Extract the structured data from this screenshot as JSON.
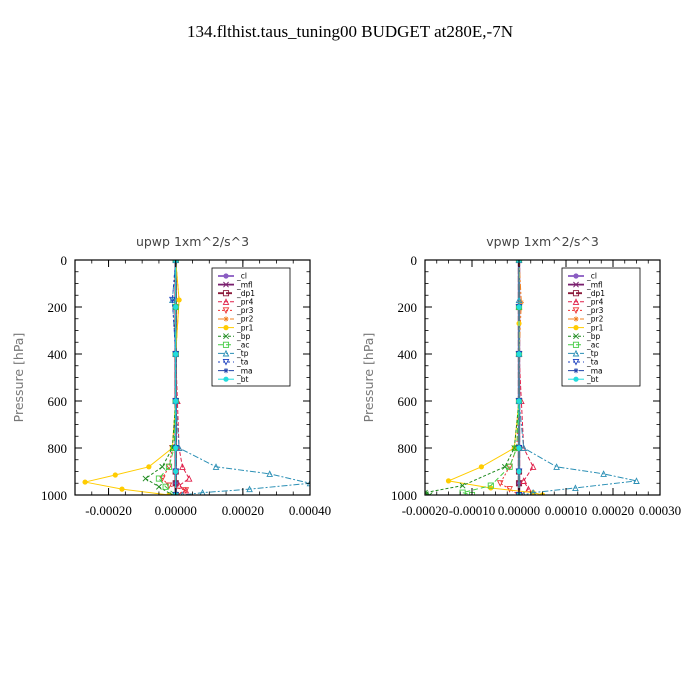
{
  "page": {
    "title": "134.flthist.taus_tuning00  BUDGET at280E,-7N"
  },
  "chart_data": [
    {
      "type": "line",
      "title": "upwp   1xm^2/s^3",
      "ylabel": "Pressure [hPa]",
      "xlabel": "",
      "xlim": [
        -0.0003,
        0.0004
      ],
      "ylim": [
        1000,
        0
      ],
      "xticks": [
        -0.0002,
        0.0,
        0.0002,
        0.0004
      ],
      "xtick_labels": [
        "-0.00020",
        "0.00000",
        "0.00020",
        "0.00040"
      ],
      "yticks": [
        0,
        200,
        400,
        600,
        800,
        1000
      ],
      "ytick_labels": [
        "0",
        "200",
        "400",
        "600",
        "800",
        "1000"
      ],
      "grid": false,
      "legend_position": "top-right",
      "series": [
        {
          "name": "_cl",
          "color": "#8a5cc2",
          "x": [
            0,
            0,
            0,
            0,
            0,
            0,
            0,
            0
          ],
          "y": [
            0,
            200,
            400,
            600,
            800,
            900,
            950,
            1000
          ]
        },
        {
          "name": "_mfl",
          "color": "#7a1f6e",
          "x": [
            0,
            0,
            0,
            0,
            0,
            0,
            0,
            0
          ],
          "y": [
            0,
            200,
            400,
            600,
            800,
            900,
            950,
            1000
          ]
        },
        {
          "name": "_dp1",
          "color": "#8b1a3a",
          "x": [
            0,
            0,
            0,
            0,
            0,
            0,
            0,
            0
          ],
          "y": [
            0,
            200,
            400,
            600,
            800,
            900,
            950,
            1000
          ]
        },
        {
          "name": "_pr4",
          "color": "#e0204a",
          "x": [
            0,
            0,
            0,
            5e-06,
            1e-05,
            2e-05,
            4e-05,
            1e-05,
            3e-05,
            5e-06
          ],
          "y": [
            0,
            200,
            400,
            600,
            800,
            880,
            930,
            960,
            980,
            1000
          ]
        },
        {
          "name": "_pr3",
          "color": "#ee3333",
          "x": [
            0,
            0,
            0,
            0,
            -1e-05,
            -2e-05,
            -4e-05,
            -2e-05,
            3e-05,
            0
          ],
          "y": [
            0,
            200,
            400,
            600,
            800,
            880,
            930,
            960,
            980,
            1000
          ]
        },
        {
          "name": "_pr2",
          "color": "#f08020",
          "x": [
            0,
            1e-05,
            0,
            0,
            0,
            0,
            0
          ],
          "y": [
            0,
            170,
            400,
            600,
            800,
            900,
            1000
          ]
        },
        {
          "name": "_pr1",
          "color": "#ffcc00",
          "x": [
            0,
            1e-05,
            0,
            0,
            -1e-05,
            -8e-05,
            -0.00018,
            -0.00027,
            -0.00016,
            -2e-05
          ],
          "y": [
            0,
            170,
            400,
            600,
            800,
            880,
            915,
            945,
            975,
            1000
          ]
        },
        {
          "name": "_bp",
          "color": "#1e8a1e",
          "x": [
            0,
            0,
            0,
            0,
            -1e-05,
            -4e-05,
            -9e-05,
            -5e-05,
            -1e-05
          ],
          "y": [
            0,
            200,
            400,
            600,
            800,
            880,
            930,
            965,
            1000
          ]
        },
        {
          "name": "_ac",
          "color": "#44cc44",
          "x": [
            0,
            0,
            0,
            0,
            -5e-06,
            -2e-05,
            -5e-05,
            -3e-05,
            0
          ],
          "y": [
            0,
            200,
            400,
            600,
            800,
            880,
            930,
            965,
            1000
          ]
        },
        {
          "name": "_tp",
          "color": "#2a8fb5",
          "x": [
            0,
            -1e-05,
            0,
            0,
            1e-05,
            0.00012,
            0.00028,
            0.0004,
            0.00022,
            8e-05,
            2e-05
          ],
          "y": [
            0,
            170,
            400,
            600,
            800,
            880,
            910,
            950,
            975,
            990,
            1000
          ]
        },
        {
          "name": "_ta",
          "color": "#1a3fbf",
          "x": [
            0,
            -1e-05,
            0,
            0,
            0,
            0,
            0
          ],
          "y": [
            0,
            170,
            400,
            600,
            800,
            900,
            1000
          ]
        },
        {
          "name": "_ma",
          "color": "#2244aa",
          "x": [
            0,
            0,
            0,
            0,
            0,
            0,
            0
          ],
          "y": [
            0,
            200,
            400,
            600,
            800,
            900,
            1000
          ]
        },
        {
          "name": "_bt",
          "color": "#22dddd",
          "x": [
            0,
            0,
            0,
            0,
            0,
            0,
            0
          ],
          "y": [
            0,
            200,
            400,
            600,
            800,
            900,
            1000
          ]
        }
      ]
    },
    {
      "type": "line",
      "title": "vpwp   1xm^2/s^3",
      "ylabel": "Pressure [hPa]",
      "xlabel": "",
      "xlim": [
        -0.0002,
        0.0003
      ],
      "ylim": [
        1000,
        0
      ],
      "xticks": [
        -0.0002,
        -0.0001,
        0.0,
        0.0001,
        0.0002,
        0.0003
      ],
      "xtick_labels": [
        "-0.00020",
        "-0.00010",
        "0.00000",
        "0.00010",
        "0.00020",
        "0.00030"
      ],
      "yticks": [
        0,
        200,
        400,
        600,
        800,
        1000
      ],
      "ytick_labels": [
        "0",
        "200",
        "400",
        "600",
        "800",
        "1000"
      ],
      "grid": false,
      "legend_position": "top-right",
      "series": [
        {
          "name": "_cl",
          "color": "#8a5cc2",
          "x": [
            0,
            0,
            0,
            0,
            0,
            0,
            0,
            0
          ],
          "y": [
            0,
            200,
            400,
            600,
            800,
            900,
            950,
            1000
          ]
        },
        {
          "name": "_mfl",
          "color": "#7a1f6e",
          "x": [
            0,
            0,
            0,
            0,
            0,
            0,
            0,
            0
          ],
          "y": [
            0,
            200,
            400,
            600,
            800,
            900,
            950,
            1000
          ]
        },
        {
          "name": "_dp1",
          "color": "#8b1a3a",
          "x": [
            0,
            0,
            0,
            0,
            0,
            0,
            0,
            0
          ],
          "y": [
            0,
            200,
            400,
            600,
            800,
            900,
            950,
            1000
          ]
        },
        {
          "name": "_pr4",
          "color": "#e0204a",
          "x": [
            0,
            0,
            0,
            5e-06,
            1e-05,
            3e-05,
            1e-05,
            2e-05,
            5e-06
          ],
          "y": [
            0,
            200,
            400,
            600,
            800,
            880,
            940,
            975,
            1000
          ]
        },
        {
          "name": "_pr3",
          "color": "#ee3333",
          "x": [
            0,
            0,
            0,
            0,
            -5e-06,
            -2e-05,
            -4e-05,
            -2e-05,
            0
          ],
          "y": [
            0,
            200,
            400,
            600,
            800,
            880,
            950,
            975,
            1000
          ]
        },
        {
          "name": "_pr2",
          "color": "#f08020",
          "x": [
            0,
            5e-06,
            0,
            0,
            0,
            0,
            0
          ],
          "y": [
            0,
            180,
            400,
            600,
            800,
            900,
            1000
          ]
        },
        {
          "name": "_pr1",
          "color": "#ffcc00",
          "x": [
            0,
            0,
            0,
            0,
            -1e-05,
            -8e-05,
            -0.00015,
            -6e-05,
            3e-05,
            5e-05
          ],
          "y": [
            0,
            270,
            400,
            600,
            800,
            880,
            940,
            970,
            990,
            1000
          ]
        },
        {
          "name": "_bp",
          "color": "#1e8a1e",
          "x": [
            0,
            0,
            0,
            0,
            -1e-05,
            -3e-05,
            -0.00012,
            -0.0002,
            -0.00019
          ],
          "y": [
            0,
            200,
            400,
            600,
            800,
            880,
            960,
            990,
            1000
          ]
        },
        {
          "name": "_ac",
          "color": "#44cc44",
          "x": [
            0,
            0,
            0,
            0,
            -5e-06,
            -2e-05,
            -6e-05,
            -0.00012,
            -0.0001
          ],
          "y": [
            0,
            200,
            400,
            600,
            800,
            880,
            960,
            990,
            1000
          ]
        },
        {
          "name": "_tp",
          "color": "#2a8fb5",
          "x": [
            0,
            0,
            0,
            0,
            1e-05,
            8e-05,
            0.00018,
            0.00025,
            0.00012,
            3e-05,
            1e-05
          ],
          "y": [
            0,
            170,
            400,
            600,
            800,
            880,
            910,
            940,
            970,
            990,
            1000
          ]
        },
        {
          "name": "_ta",
          "color": "#1a3fbf",
          "x": [
            0,
            0,
            0,
            0,
            0,
            0,
            0
          ],
          "y": [
            0,
            200,
            400,
            600,
            800,
            900,
            1000
          ]
        },
        {
          "name": "_ma",
          "color": "#2244aa",
          "x": [
            0,
            0,
            0,
            0,
            0,
            0,
            0
          ],
          "y": [
            0,
            200,
            400,
            600,
            800,
            900,
            1000
          ]
        },
        {
          "name": "_bt",
          "color": "#22dddd",
          "x": [
            0,
            0,
            0,
            0,
            0,
            0,
            0
          ],
          "y": [
            0,
            200,
            400,
            600,
            800,
            900,
            1000
          ]
        }
      ]
    }
  ]
}
